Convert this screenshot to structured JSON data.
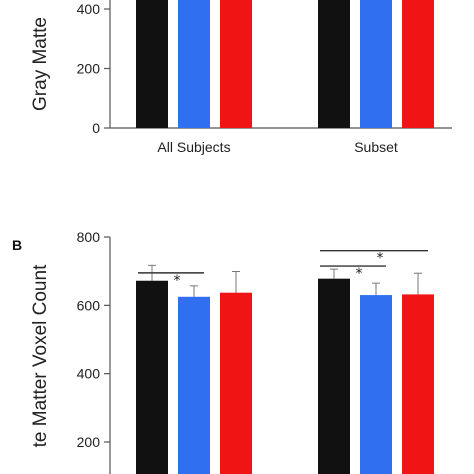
{
  "chart_data": [
    {
      "type": "bar",
      "panel_label": "",
      "ylabel": "Gray Matte",
      "yticks": [
        0,
        200,
        400
      ],
      "ylim": [
        0,
        450
      ],
      "categories": [
        "All Subjects",
        "Subset"
      ],
      "series": [
        {
          "color": "#111111",
          "values": [
            480,
            480
          ]
        },
        {
          "color": "#2f6ff0",
          "values": [
            480,
            480
          ]
        },
        {
          "color": "#f01414",
          "values": [
            480,
            480
          ]
        }
      ],
      "errors": [],
      "significance": []
    },
    {
      "type": "bar",
      "panel_label": "B",
      "ylabel": "te Matter Voxel Count",
      "yticks": [
        200,
        400,
        600,
        800
      ],
      "ylim": [
        150,
        800
      ],
      "categories": [
        "All Subjects",
        "Subset"
      ],
      "series": [
        {
          "color": "#111111",
          "values": [
            672,
            678
          ]
        },
        {
          "color": "#2f6ff0",
          "values": [
            625,
            630
          ]
        },
        {
          "color": "#f01414",
          "values": [
            637,
            632
          ]
        }
      ],
      "errors": [
        [
          45,
          28
        ],
        [
          32,
          35
        ],
        [
          62,
          62
        ]
      ],
      "significance": [
        {
          "group": 0,
          "from": 0,
          "to": 1,
          "value": 695,
          "label": "*"
        },
        {
          "group": 1,
          "from": 0,
          "to": 1,
          "value": 715,
          "label": "*"
        },
        {
          "group": 1,
          "from": 0,
          "to": 2,
          "value": 760,
          "label": "*"
        }
      ]
    }
  ]
}
